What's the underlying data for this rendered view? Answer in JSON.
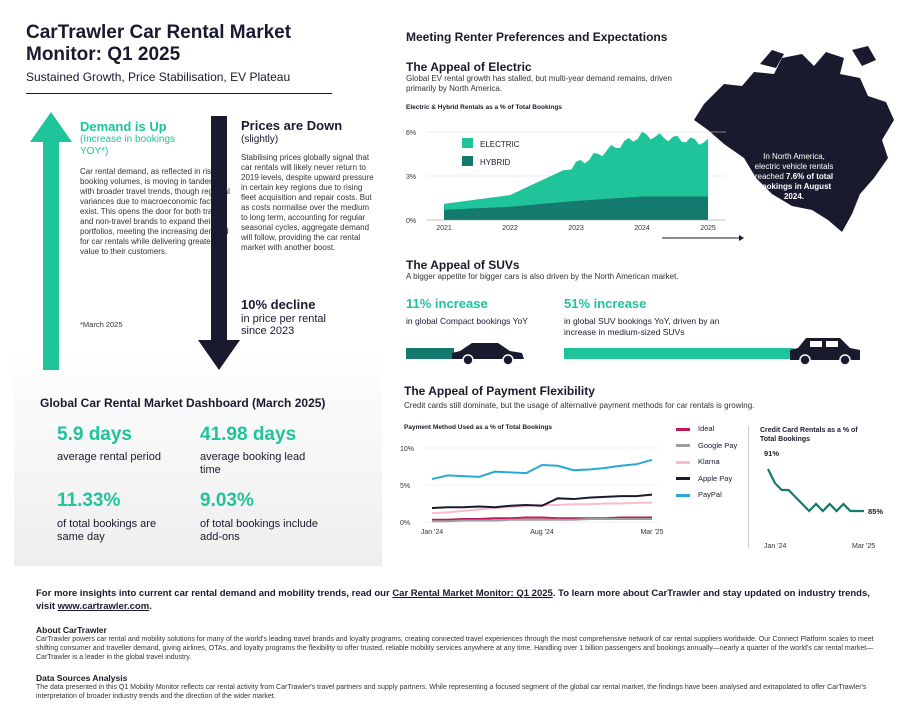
{
  "header": {
    "title": "CarTrawler Car Rental Market Monitor: Q1 2025",
    "subtitle": "Sustained Growth, Price Stabilisation, EV Plateau"
  },
  "demand": {
    "heading": "Demand is Up",
    "subheading": "(Increase in bookings YOY*)",
    "body": "Car rental demand, as reflected in rising booking volumes, is moving in tandem with broader travel trends, though regional variances due to macroeconomic factors exist. This opens the door for both travel and non-travel brands to expand their portfolios, meeting the increasing demand for car rentals while delivering greater value to their customers.",
    "note": "*March 2025"
  },
  "prices": {
    "heading": "Prices are Down",
    "subheading": "(slightly)",
    "body": "Stabilising prices globally signal that car rentals will likely never return to 2019 levels, despite upward pressure in certain key regions due to rising fleet acquisition and repair costs. But as costs normalise over the medium to long term, accounting for regular seasonal cycles, aggregate demand will follow, providing the car rental market with another boost.",
    "decline_heading": "10% decline",
    "decline_sub": "in price per rental since 2023"
  },
  "dashboard": {
    "title": "Global Car Rental Market Dashboard (March 2025)",
    "kpis": [
      {
        "value": "5.9 days",
        "label": "average rental period"
      },
      {
        "value": "41.98 days",
        "label": "average booking lead time"
      },
      {
        "value": "11.33%",
        "label": "of total bookings are same day"
      },
      {
        "value": "9.03%",
        "label": "of total bookings include add-ons"
      }
    ]
  },
  "preferences": {
    "title": "Meeting Renter Preferences and Expectations"
  },
  "electric": {
    "title": "The Appeal of Electric",
    "description": "Global EV rental growth has stalled, but multi-year demand remains, driven primarily by North America.",
    "map_callout_text": "In North America, electric vehicle rentals reached",
    "map_callout_bold": "7.6% of total bookings in August 2024."
  },
  "suvs": {
    "title": "The Appeal of SUVs",
    "description": "A bigger appetite for bigger cars is also driven by the North American market.",
    "compact_pct": "11% increase",
    "compact_label": "in global Compact bookings YoY",
    "suv_pct": "51% increase",
    "suv_label": "in global SUV bookings YoY, driven by an increase in medium-sized SUVs"
  },
  "payment": {
    "title": "The Appeal of Payment Flexibility",
    "description": "Credit cards still dominate, but the usage of alternative payment methods for car rentals is growing."
  },
  "colors": {
    "electric": "#1fc49a",
    "hybrid": "#157a6e",
    "ideal": "#c2185b",
    "googlepay": "#9e9e9e",
    "klarna": "#f8bbd0",
    "applepay": "#1a1a2e",
    "paypal": "#29a8d8",
    "credit": "#157a6e"
  },
  "chart_data": [
    {
      "type": "area",
      "title": "Electric & Hybrid Rentals as a % of Total Bookings",
      "x": [
        "2021",
        "2022",
        "2023",
        "2024",
        "2025"
      ],
      "ylim": [
        0,
        6
      ],
      "yticks": [
        "0%",
        "3%",
        "6%"
      ],
      "series": [
        {
          "name": "ELECTRIC",
          "values": [
            0.4,
            0.8,
            2.5,
            4.2,
            3.7
          ]
        },
        {
          "name": "HYBRID",
          "values": [
            0.7,
            0.9,
            1.3,
            1.6,
            1.6
          ]
        }
      ],
      "legend": "top-left"
    },
    {
      "type": "line",
      "title": "Payment Method Used as a % of Total Bookings",
      "x": [
        "Jan '24",
        "Feb '24",
        "Mar '24",
        "Apr '24",
        "May '24",
        "Jun '24",
        "Jul '24",
        "Aug '24",
        "Sep '24",
        "Oct '24",
        "Nov '24",
        "Dec '24",
        "Jan '25",
        "Feb '25",
        "Mar '25"
      ],
      "xticks": [
        "Jan '24",
        "Aug '24",
        "Mar '25"
      ],
      "ylim": [
        0,
        10
      ],
      "yticks": [
        "0%",
        "5%",
        "10%"
      ],
      "series": [
        {
          "name": "Ideal",
          "values": [
            0.3,
            0.3,
            0.4,
            0.4,
            0.5,
            0.5,
            0.6,
            0.6,
            0.5,
            0.5,
            0.5,
            0.5,
            0.6,
            0.6,
            0.6
          ]
        },
        {
          "name": "Google Pay",
          "values": [
            0.1,
            0.1,
            0.2,
            0.2,
            0.2,
            0.3,
            0.3,
            0.3,
            0.3,
            0.3,
            0.4,
            0.4,
            0.4,
            0.4,
            0.4
          ]
        },
        {
          "name": "Klarna",
          "values": [
            1.2,
            1.3,
            1.5,
            1.7,
            1.9,
            2.0,
            2.2,
            2.3,
            2.3,
            2.4,
            2.4,
            2.5,
            2.5,
            2.6,
            2.6
          ]
        },
        {
          "name": "Apple Pay",
          "values": [
            1.9,
            2.0,
            2.0,
            2.1,
            2.0,
            2.2,
            2.3,
            2.2,
            3.2,
            3.1,
            3.3,
            3.4,
            3.5,
            3.5,
            3.7
          ]
        },
        {
          "name": "PayPal",
          "values": [
            5.8,
            6.3,
            6.2,
            6.1,
            6.8,
            6.7,
            6.6,
            7.7,
            7.6,
            7.0,
            7.1,
            7.3,
            7.6,
            7.8,
            8.4
          ]
        }
      ],
      "legend": "right"
    },
    {
      "type": "line",
      "title": "Credit Card Rentals as a % of Total Bookings",
      "x": [
        "Jan '24",
        "Feb '24",
        "Mar '24",
        "Apr '24",
        "May '24",
        "Jun '24",
        "Jul '24",
        "Aug '24",
        "Sep '24",
        "Oct '24",
        "Nov '24",
        "Dec '24",
        "Jan '25",
        "Feb '25",
        "Mar '25"
      ],
      "xticks": [
        "Jan '24",
        "Mar '25"
      ],
      "series": [
        {
          "values": [
            91,
            89,
            88,
            88,
            87,
            86,
            85,
            86,
            85,
            86,
            85,
            86,
            85,
            85,
            85
          ]
        }
      ],
      "start_label": "91%",
      "end_label": "85%"
    }
  ],
  "footer": {
    "cta_pre": "For more insights into current car rental demand and mobility trends, read our ",
    "cta_link": "Car Rental Market Monitor: Q1 2025",
    "cta_mid": ". To learn more about CarTrawler and stay updated on industry trends, visit ",
    "cta_url": "www.cartrawler.com",
    "cta_end": ".",
    "about_heading": "About CarTrawler",
    "about_body": "CarTrawler powers car rental and mobility solutions for many of the world's leading travel brands and loyalty programs, creating connected travel experiences through the most comprehensive network of car rental suppliers worldwide. Our Connect Platform scales to meet shifting consumer and traveller demand, giving airlines, OTAs, and loyalty programs the flexibility to offer trusted, reliable mobility services anywhere at any time. Handling over 1 billion passengers and bookings annually—nearly a quarter of the world's car rental market—CarTrawler is a leader in the global travel industry.",
    "ds_heading": "Data Sources Analysis",
    "ds_body": "The data presented in this Q1 Mobility Monitor reflects car rental activity from CarTrawler's travel partners and supply partners. While representing a focused segment of the global car rental market, the findings have been analysed and extrapolated to offer CarTrawler's interpretation of broader industry trends and the direction of the wider market."
  }
}
